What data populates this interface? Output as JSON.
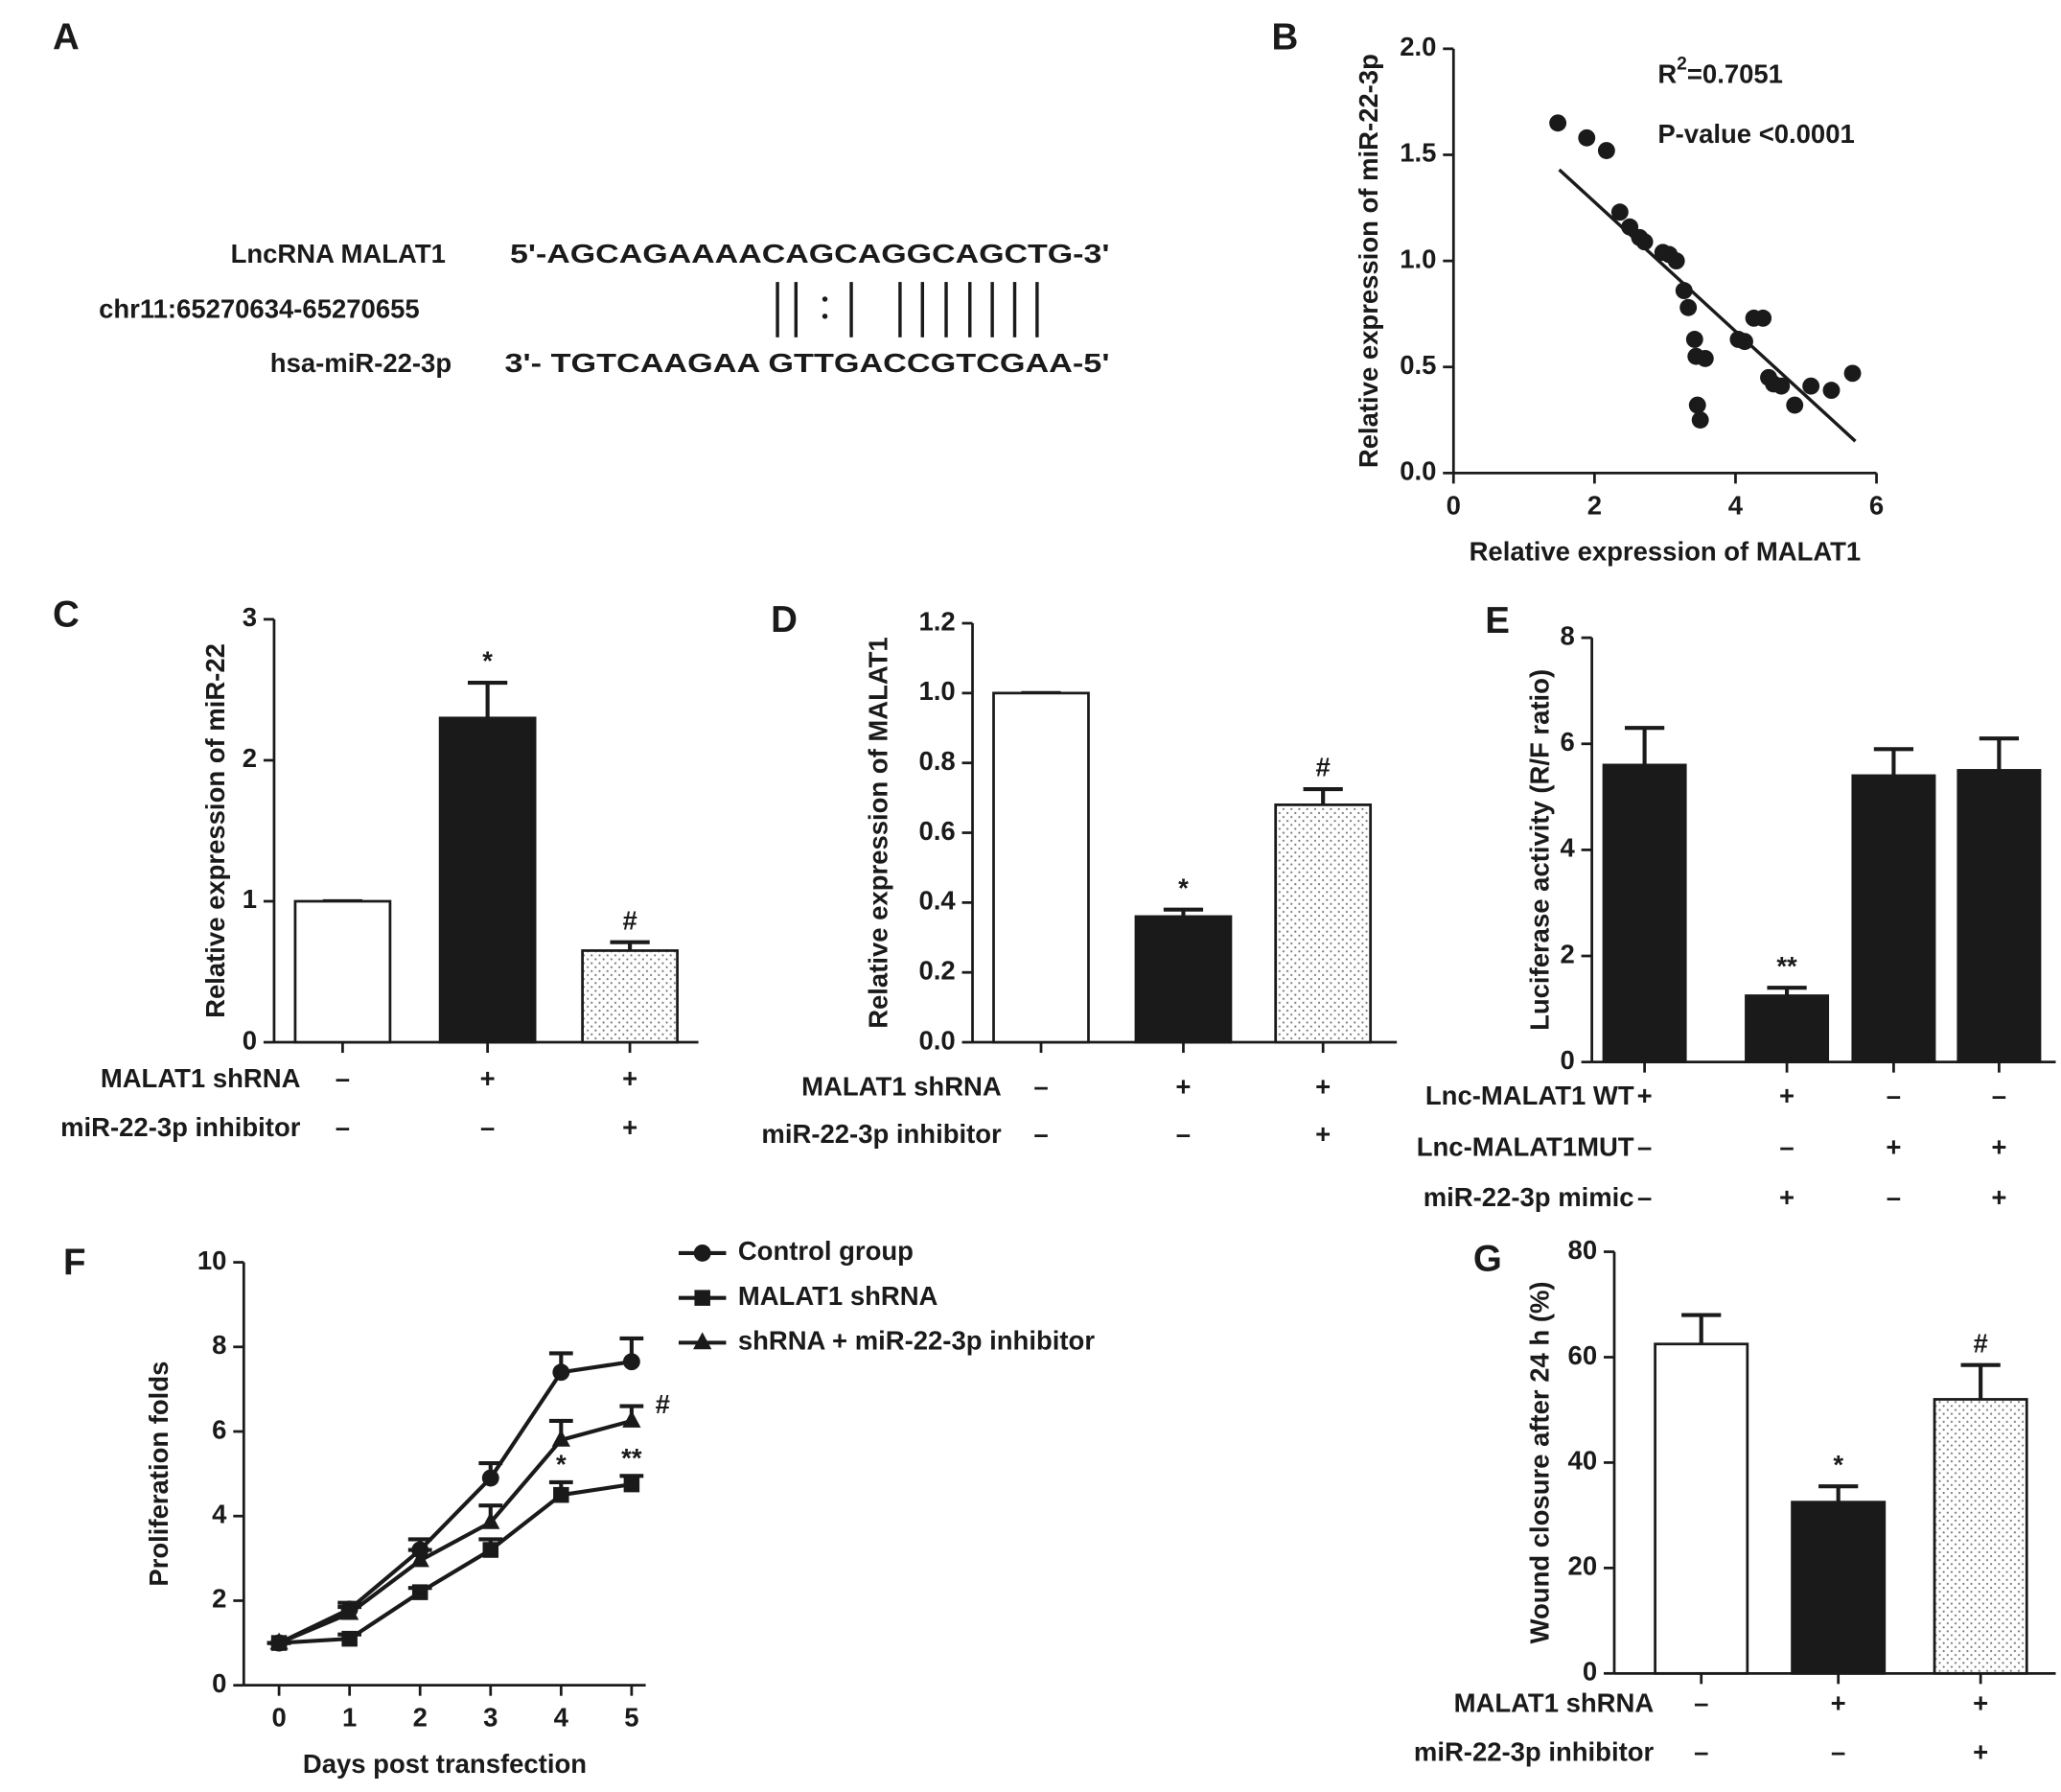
{
  "sequence_panel": {
    "label": "A",
    "lncrna_name": "LncRNA MALAT1",
    "lncrna_seq": "5'-AGCAGAAAACAGCAGGCAGCTG-3'",
    "locus": "chr11:65270634-65270655",
    "mirna_name": "hsa-miR-22-3p",
    "mirna_seq": "3'- TGTCAAGAA GTTGACCGTCGAA-5'"
  },
  "chart_data": [
    {
      "type": "scatter",
      "panel_label": "B",
      "xlabel": "Relative expression of MALAT1",
      "ylabel": "Relative expression of miR-22-3p",
      "r_squared": {
        "symbol": "R",
        "superscript": "2",
        "text": "=0.7051"
      },
      "p_value": "P-value <0.0001",
      "x": [
        1.48,
        1.89,
        2.17,
        2.36,
        2.5,
        2.64,
        2.71,
        2.97,
        3.06,
        3.16,
        3.27,
        3.33,
        3.42,
        3.44,
        3.57,
        3.46,
        3.5,
        4.04,
        4.13,
        4.26,
        4.39,
        4.47,
        4.54,
        4.65,
        4.84,
        5.07,
        5.36,
        5.66
      ],
      "y": [
        1.65,
        1.58,
        1.52,
        1.23,
        1.16,
        1.11,
        1.09,
        1.04,
        1.03,
        1.0,
        0.86,
        0.78,
        0.63,
        0.55,
        0.54,
        0.32,
        0.25,
        0.63,
        0.62,
        0.73,
        0.73,
        0.45,
        0.42,
        0.41,
        0.32,
        0.41,
        0.39,
        0.47
      ],
      "fit_line": {
        "x": [
          1.5,
          5.7
        ],
        "y": [
          1.43,
          0.15
        ]
      },
      "color": "#1a1a1a",
      "xlim": [
        0,
        6
      ],
      "ylim": [
        0,
        2
      ],
      "xticks": [
        0,
        2,
        4,
        6
      ],
      "yticks": [
        {
          "value": 0,
          "label": "0.0"
        },
        0.5,
        {
          "value": 1,
          "label": "1.0"
        },
        1.5,
        {
          "value": 2,
          "label": "2.0"
        }
      ]
    },
    {
      "type": "bar",
      "panel_label": "C",
      "ylabel": "Relative expression of miR-22",
      "values": [
        1,
        2.3,
        0.65
      ],
      "errors": [
        0,
        0.25,
        0.06
      ],
      "colors": [
        "#ffffff",
        "#1a1a1a",
        "#ffffff"
      ],
      "patterns": [
        "none",
        "none",
        "dots"
      ],
      "significance": [
        null,
        "*",
        "#"
      ],
      "rows": [
        {
          "label": "MALAT1 shRNA",
          "signs": [
            "–",
            "+",
            "+"
          ]
        },
        {
          "label": "miR-22-3p inhibitor",
          "signs": [
            "–",
            "–",
            "+"
          ]
        }
      ],
      "ylim": [
        0,
        3
      ],
      "yticks": [
        0,
        1,
        2,
        3
      ]
    },
    {
      "type": "bar",
      "panel_label": "D",
      "ylabel": "Relative expression of MALAT1",
      "values": [
        1,
        0.36,
        0.68
      ],
      "errors": [
        0,
        0.02,
        0.045
      ],
      "colors": [
        "#ffffff",
        "#1a1a1a",
        "#ffffff"
      ],
      "patterns": [
        "none",
        "none",
        "dots"
      ],
      "significance": [
        null,
        "*",
        "#"
      ],
      "rows": [
        {
          "label": "MALAT1 shRNA",
          "signs": [
            "–",
            "+",
            "+"
          ]
        },
        {
          "label": "miR-22-3p inhibitor",
          "signs": [
            "–",
            "–",
            "+"
          ]
        }
      ],
      "ylim": [
        0,
        1.2
      ],
      "yticks": [
        {
          "value": 0,
          "label": "0.0"
        },
        0.2,
        0.4,
        0.6,
        0.8,
        {
          "value": 1,
          "label": "1.0"
        },
        1.2
      ]
    },
    {
      "type": "bar",
      "panel_label": "E",
      "ylabel": "Luciferase activity (R/F ratio)",
      "values": [
        5.6,
        1.25,
        5.4,
        5.5
      ],
      "errors": [
        0.7,
        0.15,
        0.5,
        0.6
      ],
      "colors": [
        "#1a1a1a",
        "#1a1a1a",
        "#1a1a1a",
        "#1a1a1a"
      ],
      "patterns": [
        "none",
        "none",
        "none",
        "none"
      ],
      "significance": [
        null,
        "**",
        null,
        null
      ],
      "rows": [
        {
          "label": "Lnc-MALAT1 WT",
          "signs": [
            "+",
            "+",
            "–",
            "–"
          ]
        },
        {
          "label": "Lnc-MALAT1MUT",
          "signs": [
            "–",
            "–",
            "+",
            "+"
          ]
        },
        {
          "label": "miR-22-3p mimic",
          "signs": [
            "–",
            "+",
            "–",
            "+"
          ]
        }
      ],
      "ylim": [
        0,
        8
      ],
      "yticks": [
        0,
        2,
        4,
        6,
        8
      ]
    },
    {
      "type": "line",
      "panel_label": "F",
      "xlabel": "Days post transfection",
      "ylabel": "Proliferation folds",
      "x": [
        0,
        1,
        2,
        3,
        4,
        5
      ],
      "series": [
        {
          "name": "Control group",
          "color": "#1a1a1a",
          "marker": "circle",
          "values": [
            1,
            1.8,
            3.2,
            4.9,
            7.4,
            7.65
          ],
          "errors": [
            0,
            0.15,
            0.25,
            0.35,
            0.45,
            0.55
          ],
          "significance": [
            null,
            null,
            null,
            null,
            null,
            null
          ]
        },
        {
          "name": "MALAT1 shRNA",
          "color": "#1a1a1a",
          "marker": "square",
          "values": [
            1,
            1.1,
            2.2,
            3.2,
            4.5,
            4.75
          ],
          "errors": [
            0,
            0.1,
            0.1,
            0.25,
            0.3,
            0.2
          ],
          "significance": [
            null,
            null,
            null,
            null,
            "*",
            "**"
          ]
        },
        {
          "name": "shRNA + miR-22-3p inhibitor",
          "color": "#1a1a1a",
          "marker": "triangle",
          "values": [
            1,
            1.7,
            2.95,
            3.85,
            5.8,
            6.25
          ],
          "errors": [
            0,
            0.15,
            0.25,
            0.4,
            0.45,
            0.35
          ],
          "significance": [
            null,
            null,
            null,
            null,
            null,
            "#"
          ]
        }
      ],
      "xlim": [
        -0.5,
        5.2
      ],
      "ylim": [
        0,
        10
      ],
      "xticks": [
        0,
        1,
        2,
        3,
        4,
        5
      ],
      "yticks": [
        0,
        2,
        4,
        6,
        8,
        10
      ],
      "legend": "outside-right"
    },
    {
      "type": "bar",
      "panel_label": "G",
      "ylabel": "Wound closure after 24 h (%)",
      "values": [
        62.5,
        32.5,
        52
      ],
      "errors": [
        5.5,
        3,
        6.5
      ],
      "colors": [
        "#ffffff",
        "#1a1a1a",
        "#ffffff"
      ],
      "patterns": [
        "none",
        "none",
        "dots"
      ],
      "significance": [
        null,
        "*",
        "#"
      ],
      "rows": [
        {
          "label": "MALAT1 shRNA",
          "signs": [
            "–",
            "+",
            "+"
          ]
        },
        {
          "label": "miR-22-3p inhibitor",
          "signs": [
            "–",
            "–",
            "+"
          ]
        }
      ],
      "ylim": [
        0,
        80
      ],
      "yticks": [
        0,
        20,
        40,
        60,
        80
      ]
    }
  ]
}
